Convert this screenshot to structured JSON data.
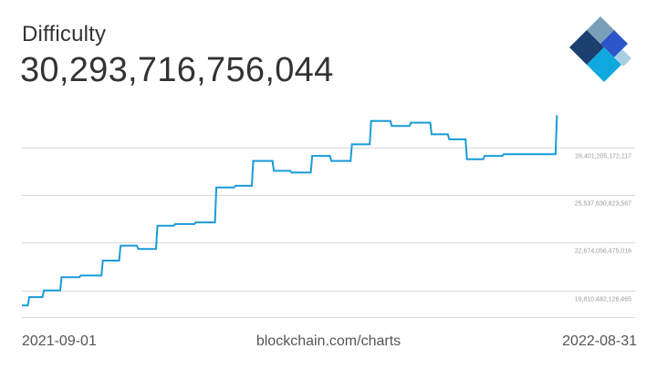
{
  "header": {
    "title": "Difficulty",
    "value": "30,293,716,756,044"
  },
  "footer": {
    "start_date": "2021-09-01",
    "source": "blockchain.com/charts",
    "end_date": "2022-08-31"
  },
  "logo": {
    "icon": "blockchain-logo-icon",
    "colors": [
      "#1B3F6E",
      "#7A9FB8",
      "#2B55C9",
      "#0FA9E0",
      "#A9CFE3"
    ]
  },
  "colors": {
    "line": "#1A9BD7",
    "grid": "#D9D9D9",
    "text": "#333333"
  },
  "chart_data": {
    "type": "line",
    "title": "Difficulty",
    "x_range": [
      "2021-09-01",
      "2022-08-31"
    ],
    "ylim": [
      18200000000000,
      31800000000000
    ],
    "grid": true,
    "ytick_labels": [
      "28,401,205,172,117",
      "25,537,630,823,567",
      "22,674,056,475,016",
      "19,810,482,126,465"
    ],
    "yticks": [
      28401205172117,
      25537630823567,
      22674056475016,
      19810482126465
    ],
    "series": [
      {
        "x": [
          "2021-09-01",
          "2021-09-05",
          "2021-09-15",
          "2021-09-27",
          "2021-10-10",
          "2021-10-25",
          "2021-11-06",
          "2021-11-18",
          "2021-12-01",
          "2021-12-13",
          "2021-12-27",
          "2022-01-10",
          "2022-01-23",
          "2022-02-04",
          "2022-02-18",
          "2022-03-02",
          "2022-03-16",
          "2022-03-29",
          "2022-04-12",
          "2022-04-25",
          "2022-05-09",
          "2022-05-22",
          "2022-06-05",
          "2022-06-17",
          "2022-06-29",
          "2022-07-11",
          "2022-07-24",
          "2022-08-05",
          "2022-08-18",
          "2022-08-29"
        ],
        "y": [
          18900000000000,
          19400000000000,
          19800000000000,
          20600000000000,
          20700000000000,
          21600000000000,
          22500000000000,
          22300000000000,
          23700000000000,
          23800000000000,
          23900000000000,
          26000000000000,
          26100000000000,
          27600000000000,
          27000000000000,
          26900000000000,
          27900000000000,
          27600000000000,
          28600000000000,
          30000000000000,
          29700000000000,
          29900000000000,
          29200000000000,
          28900000000000,
          27700000000000,
          27900000000000,
          28000000000000,
          28000000000000,
          28000000000000,
          30293716756044
        ],
        "x_end": "2022-08-31"
      }
    ]
  }
}
